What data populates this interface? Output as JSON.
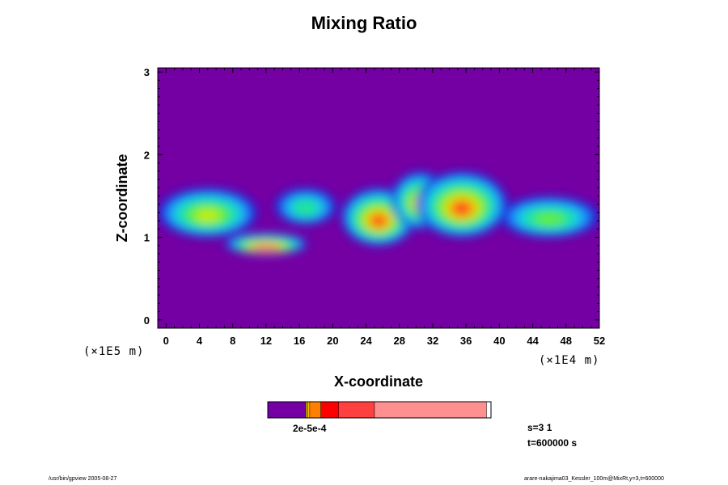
{
  "chart_data": {
    "type": "heatmap",
    "title": "Mixing Ratio",
    "xlabel": "X-coordinate",
    "ylabel": "Z-coordinate",
    "x_scale_label": "(×1E4 m)",
    "y_scale_label": "(×1E5 m)",
    "xlim": [
      -1,
      52
    ],
    "ylim": [
      -0.1,
      3.05
    ],
    "x_ticks": [
      "0",
      "4",
      "8",
      "12",
      "16",
      "20",
      "24",
      "28",
      "32",
      "36",
      "40",
      "44",
      "48",
      "52"
    ],
    "y_ticks": [
      "0",
      "1",
      "2",
      "3"
    ],
    "background_color": "#7400a4",
    "levels_colors": [
      "#7400a4",
      "#1a22d8",
      "#1e8cff",
      "#16d8d8",
      "#22e680",
      "#66ee22",
      "#c8ee10",
      "#ffa000",
      "#ff2020",
      "#ff9090"
    ],
    "regions": [
      {
        "x": [
          -1,
          11
        ],
        "z": [
          1.0,
          1.6
        ],
        "peak": 0.7
      },
      {
        "x": [
          7,
          17
        ],
        "z": [
          0.8,
          1.05
        ],
        "peak": 1.0
      },
      {
        "x": [
          13,
          20.5
        ],
        "z": [
          1.15,
          1.6
        ],
        "peak": 0.45
      },
      {
        "x": [
          21,
          30
        ],
        "z": [
          0.9,
          1.6
        ],
        "peak": 0.85
      },
      {
        "x": [
          27,
          34
        ],
        "z": [
          1.1,
          1.8
        ],
        "peak": 0.75
      },
      {
        "x": [
          30,
          41
        ],
        "z": [
          1.0,
          1.8
        ],
        "peak": 0.9
      },
      {
        "x": [
          40,
          52
        ],
        "z": [
          1.0,
          1.5
        ],
        "peak": 0.55
      }
    ]
  },
  "colorbar": {
    "segments": [
      {
        "fraction": 0.17,
        "color": "#7400a4"
      },
      {
        "fraction": 0.008,
        "color": "#c8b400"
      },
      {
        "fraction": 0.01,
        "color": "#ffc000"
      },
      {
        "fraction": 0.05,
        "color": "#ff8000"
      },
      {
        "fraction": 0.08,
        "color": "#ff0000"
      },
      {
        "fraction": 0.16,
        "color": "#ff4040"
      },
      {
        "fraction": 0.502,
        "color": "#ff9090"
      }
    ],
    "labels": "2e-5e-4"
  },
  "info": {
    "s_line": "s=3 1",
    "t_line": "t=600000 s"
  },
  "footer": {
    "left": "/usr/bin/gpview 2005-08-27",
    "right": "arare-nakajima03_Kessler_100m@MixRt,y=3,t=600000"
  }
}
